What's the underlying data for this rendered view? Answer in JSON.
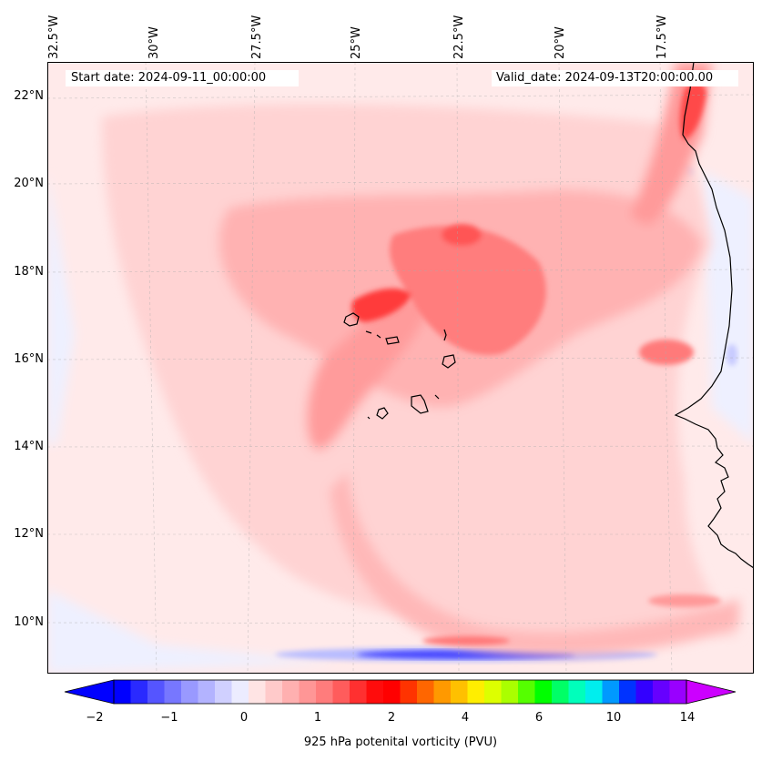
{
  "map": {
    "start_date": "Start date: 2024-09-11_00:00:00",
    "valid_date": "Valid_date: 2024-09-13T20:00:00.00",
    "longitude_labels": [
      "32.5°W",
      "30°W",
      "27.5°W",
      "25°W",
      "22.5°W",
      "20°W",
      "17.5°W"
    ],
    "latitude_labels": [
      "22°N",
      "20°N",
      "18°N",
      "16°N",
      "14°N",
      "12°N",
      "10°N"
    ],
    "variable": "925 hPa potential vorticity field over the eastern tropical Atlantic (Cape Verde region)"
  },
  "colorbar": {
    "title": "925 hPa potenital vorticity (PVU)",
    "tick_labels": [
      "−2",
      "−1",
      "0",
      "1",
      "2",
      "4",
      "6",
      "10",
      "14"
    ],
    "colors": [
      "#0000ff",
      "#2a2aff",
      "#5555ff",
      "#7777ff",
      "#9999ff",
      "#b3b3ff",
      "#d0d0ff",
      "#ececff",
      "#ffe4e4",
      "#ffcaca",
      "#ffb0b0",
      "#ff9696",
      "#ff7c7c",
      "#ff5c5c",
      "#ff3030",
      "#ff0c0c",
      "#ff0000",
      "#ff3300",
      "#ff6600",
      "#ff9900",
      "#ffc000",
      "#ffee00",
      "#ddff00",
      "#aaff00",
      "#55ff00",
      "#00ff00",
      "#00ff66",
      "#00ffbb",
      "#00eeee",
      "#0099ff",
      "#0033ff",
      "#3300ff",
      "#6600ff",
      "#9900ff"
    ]
  }
}
